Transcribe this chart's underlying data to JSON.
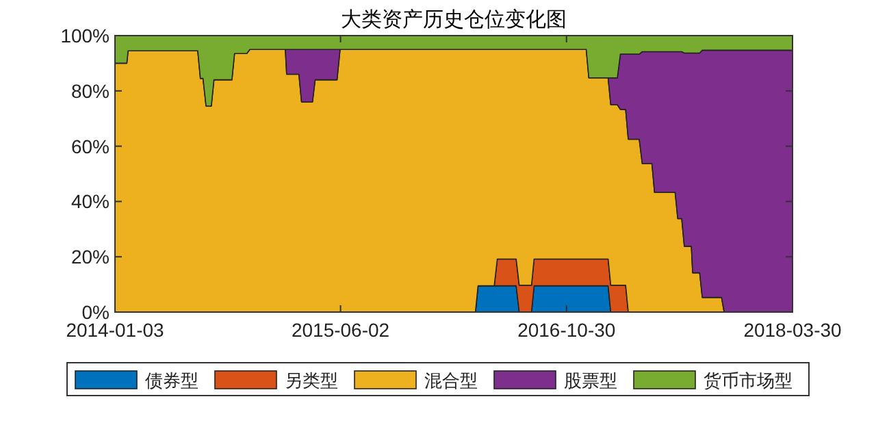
{
  "chart_data": {
    "type": "area",
    "stacked": true,
    "title": "大类资产历史仓位变化图",
    "legend": "bottom",
    "grid": false,
    "x": [
      "2014-01-03",
      "2014-01-30",
      "2014-02-02",
      "2014-07-11",
      "2014-07-17",
      "2014-07-23",
      "2014-07-30",
      "2014-08-11",
      "2014-08-17",
      "2014-09-27",
      "2014-10-03",
      "2014-10-31",
      "2014-11-07",
      "2015-01-27",
      "2015-01-30",
      "2015-02-27",
      "2015-03-05",
      "2015-03-30",
      "2015-04-05",
      "2015-05-25",
      "2015-06-01",
      "2016-04-05",
      "2016-04-11",
      "2016-05-18",
      "2016-05-25",
      "2016-07-07",
      "2016-07-14",
      "2016-08-11",
      "2016-08-17",
      "2016-12-14",
      "2016-12-20",
      "2017-02-02",
      "2017-02-08",
      "2017-02-23",
      "2017-03-02",
      "2017-03-14",
      "2017-03-20",
      "2017-04-14",
      "2017-04-21",
      "2017-05-13",
      "2017-05-19",
      "2017-07-05",
      "2017-07-11",
      "2017-07-20",
      "2017-07-26",
      "2017-08-11",
      "2017-08-14",
      "2017-08-30",
      "2017-09-05",
      "2017-10-19",
      "2017-10-25",
      "2018-03-30"
    ],
    "series": [
      {
        "name": "债券型",
        "color": "#0072bd",
        "values": [
          0,
          0,
          0,
          0,
          0,
          0,
          0,
          0,
          0,
          0,
          0,
          0,
          0,
          0,
          0,
          0,
          0,
          0,
          0,
          0,
          0,
          0,
          9.5,
          9.5,
          9.5,
          9.5,
          0,
          0,
          9.5,
          9.5,
          9.5,
          9.5,
          0,
          0,
          0,
          0,
          0,
          0,
          0,
          0,
          0,
          0,
          0,
          0,
          0,
          0,
          0,
          0,
          0,
          0,
          0,
          0
        ]
      },
      {
        "name": "另类型",
        "color": "#d95319",
        "values": [
          0,
          0,
          0,
          0,
          0,
          0,
          0,
          0,
          0,
          0,
          0,
          0,
          0,
          0,
          0,
          0,
          0,
          0,
          0,
          0,
          0,
          0,
          0,
          0,
          9.7,
          9.7,
          9.7,
          9.7,
          9.7,
          9.7,
          9.7,
          9.7,
          9.7,
          9.7,
          9.7,
          9.7,
          0,
          0,
          0,
          0,
          0,
          0,
          0,
          0,
          0,
          0,
          0,
          0,
          0,
          0,
          0,
          0
        ]
      },
      {
        "name": "混合型",
        "color": "#edb120",
        "values": [
          90,
          90,
          94.5,
          94.5,
          84.5,
          84.5,
          74.5,
          74.5,
          84,
          84,
          93.5,
          93.5,
          95,
          95,
          86,
          86,
          76,
          76,
          84,
          84,
          95,
          95,
          85.5,
          85.5,
          75.8,
          75.8,
          85.3,
          85.3,
          75.8,
          75.8,
          65.5,
          65.5,
          65.3,
          65.3,
          63.6,
          63.6,
          62.5,
          62.5,
          53.7,
          53.7,
          43.3,
          43.3,
          33.8,
          33.8,
          23.8,
          23.8,
          14.2,
          14.2,
          5.3,
          5.3,
          0,
          0
        ]
      },
      {
        "name": "股票型",
        "color": "#7e2f8e",
        "values": [
          null,
          null,
          null,
          null,
          null,
          null,
          null,
          null,
          null,
          null,
          null,
          null,
          null,
          0,
          9,
          9,
          19,
          19,
          11,
          11,
          0,
          null,
          null,
          null,
          null,
          null,
          null,
          null,
          null,
          null,
          null,
          0,
          9.7,
          9.7,
          20,
          20,
          30.8,
          30.8,
          40.5,
          40.5,
          50.9,
          50.9,
          60.4,
          60.4,
          69.9,
          69.9,
          79.5,
          79.5,
          89.4,
          89.4,
          94.7,
          94.7
        ]
      },
      {
        "name": "货币市场型",
        "color": "#77ac30",
        "values": [
          10,
          10,
          5.5,
          5.5,
          15.5,
          15.5,
          25.5,
          25.5,
          16,
          16,
          6.5,
          6.5,
          5,
          5,
          5,
          5,
          5,
          5,
          5,
          5,
          5,
          5,
          5,
          5,
          5,
          5,
          5,
          5,
          5,
          5,
          15.3,
          15.3,
          15.3,
          15.3,
          6.7,
          6.7,
          6.7,
          6.7,
          5.8,
          5.8,
          5.8,
          5.8,
          5.8,
          5.8,
          6.3,
          6.3,
          6.3,
          6.3,
          5.3,
          5.3,
          5.3,
          5.3
        ]
      }
    ],
    "xlim": [
      "2014-01-03",
      "2018-03-30"
    ],
    "xticks": [
      "2014-01-03",
      "2015-06-02",
      "2016-10-30",
      "2018-03-30"
    ],
    "ylim": [
      0,
      100
    ],
    "yticks": [
      {
        "value": 0,
        "label": "0%"
      },
      {
        "value": 20,
        "label": "20%"
      },
      {
        "value": 40,
        "label": "40%"
      },
      {
        "value": 60,
        "label": "60%"
      },
      {
        "value": 80,
        "label": "80%"
      },
      {
        "value": 100,
        "label": "100%"
      }
    ]
  }
}
